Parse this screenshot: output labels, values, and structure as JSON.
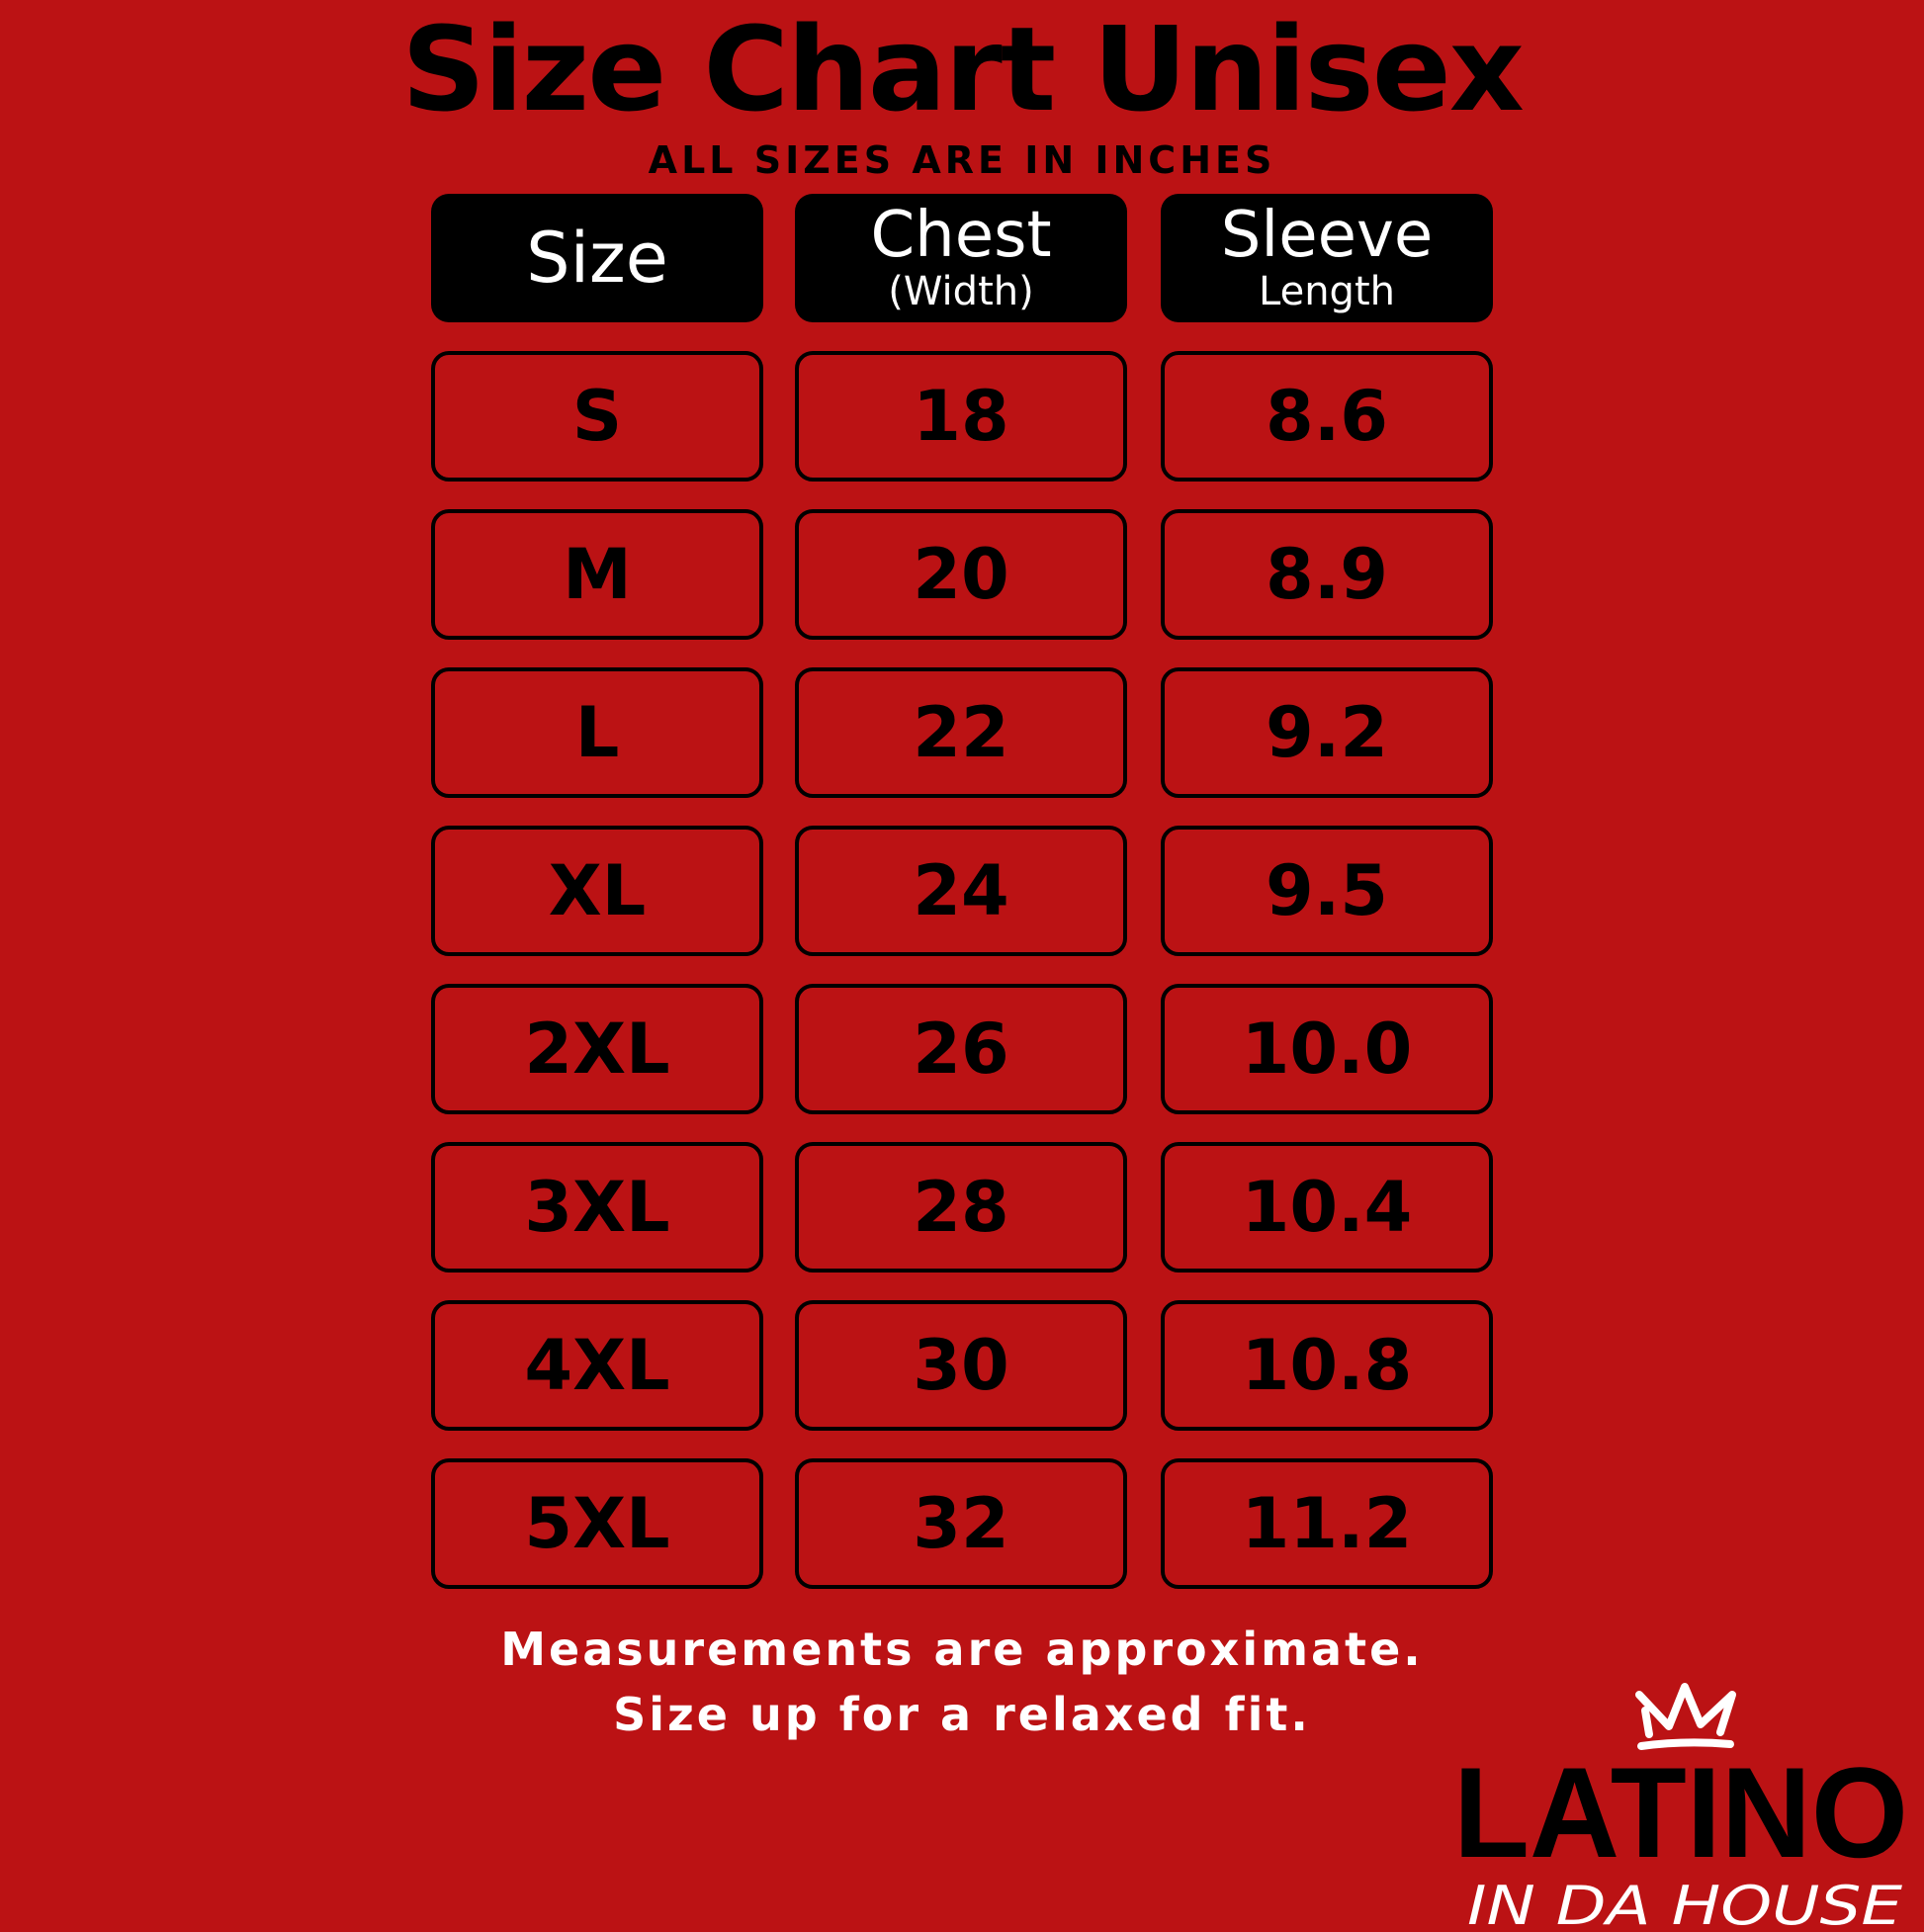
{
  "title": "Size Chart Unisex",
  "subtitle": "ALL SIZES ARE IN INCHES",
  "headers": [
    {
      "main": "Size",
      "sub": ""
    },
    {
      "main": "Chest",
      "sub": "(Width)"
    },
    {
      "main": "Sleeve",
      "sub": "Length"
    }
  ],
  "rows": [
    [
      "S",
      "18",
      "8.6"
    ],
    [
      "M",
      "20",
      "8.9"
    ],
    [
      "L",
      "22",
      "9.2"
    ],
    [
      "XL",
      "24",
      "9.5"
    ],
    [
      "2XL",
      "26",
      "10.0"
    ],
    [
      "3XL",
      "28",
      "10.4"
    ],
    [
      "4XL",
      "30",
      "10.8"
    ],
    [
      "5XL",
      "32",
      "11.2"
    ]
  ],
  "footer": {
    "line1": "Measurements are approximate.",
    "line2": "Size up for a relaxed fit."
  },
  "logo": {
    "line1": "LATINO",
    "line2": "IN DA HOUSE",
    "icon": "crown-icon"
  },
  "colors": {
    "background": "#bb1214",
    "header": "#000000",
    "text": "#ffffff"
  }
}
